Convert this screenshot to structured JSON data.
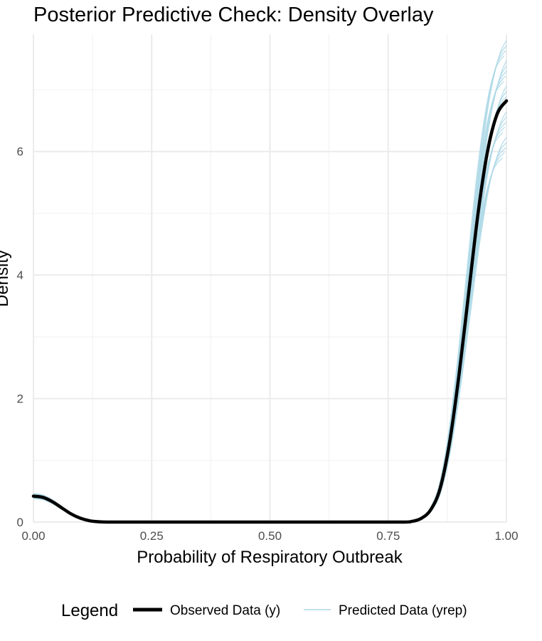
{
  "chart_data": {
    "type": "line",
    "title": "Posterior Predictive Check: Density Overlay",
    "xlabel": "Probability of Respiratory Outbreak",
    "ylabel": "Density",
    "xlim": [
      0,
      1
    ],
    "ylim": [
      0,
      7.9
    ],
    "x_ticks": [
      "0.00",
      "0.25",
      "0.50",
      "0.75",
      "1.00"
    ],
    "y_ticks": [
      "0",
      "2",
      "4",
      "6"
    ],
    "grid": true,
    "legend": {
      "position": "bottom",
      "title": "Legend",
      "entries": [
        "Observed Data (y)",
        "Predicted Data (yrep)"
      ]
    },
    "colors": {
      "observed": "#000000",
      "predicted": "#add8e6",
      "grid_major": "#ebebeb",
      "grid_minor": "#f3f3f3"
    },
    "series": [
      {
        "name": "Observed Data (y)",
        "x": [
          0.0,
          0.02,
          0.04,
          0.06,
          0.08,
          0.1,
          0.12,
          0.14,
          0.16,
          0.2,
          0.3,
          0.4,
          0.5,
          0.6,
          0.7,
          0.78,
          0.8,
          0.82,
          0.84,
          0.86,
          0.88,
          0.9,
          0.92,
          0.94,
          0.96,
          0.98,
          1.0
        ],
        "y": [
          0.42,
          0.4,
          0.33,
          0.23,
          0.13,
          0.06,
          0.02,
          0.005,
          0.0,
          0.0,
          0.0,
          0.0,
          0.0,
          0.0,
          0.0,
          0.0,
          0.01,
          0.06,
          0.2,
          0.55,
          1.3,
          2.4,
          3.7,
          5.0,
          6.0,
          6.6,
          6.82
        ]
      }
    ],
    "predicted_draws": {
      "name": "Predicted Data (yrep)",
      "count": 24,
      "peak_range": [
        5.9,
        7.8
      ],
      "intercept_range": [
        0.38,
        0.46
      ]
    }
  }
}
